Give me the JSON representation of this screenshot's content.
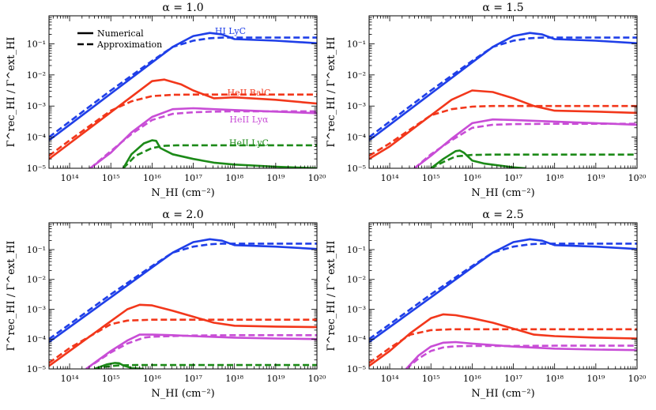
{
  "figure": {
    "xlabel": "N_HI (cm⁻²)",
    "ylabel": "Γ^rec_HI / Γ^ext_HI"
  },
  "legend": {
    "items": [
      {
        "label": "Numerical",
        "style": "solid"
      },
      {
        "label": "Approximation",
        "style": "dashed"
      }
    ]
  },
  "colors": {
    "HI LyC": "#1f3fe8",
    "HeII BalC": "#f2371b",
    "HeII Lyα": "#c84dd6",
    "HeII LyC": "#1c8a18"
  },
  "chart_data": [
    {
      "type": "line",
      "title": "α = 1.0",
      "xscale": "log",
      "yscale": "log",
      "xlim": [
        13.5,
        20.0
      ],
      "ylim": [
        -5.0,
        -0.1
      ],
      "xticks": [
        14,
        15,
        16,
        17,
        18,
        19,
        20
      ],
      "yticks": [
        -5,
        -4,
        -3,
        -2,
        -1
      ],
      "annotations": [
        {
          "text": "HI LyC",
          "series": "HI LyC",
          "at": [
            17.9,
            -0.68
          ]
        },
        {
          "text": "HeII BalC",
          "series": "HeII BalC",
          "at": [
            18.35,
            -2.66
          ]
        },
        {
          "text": "HeII Lyα",
          "series": "HeII Lyα",
          "at": [
            18.35,
            -3.53
          ]
        },
        {
          "text": "HeII LyC",
          "series": "HeII LyC",
          "at": [
            18.35,
            -4.28
          ]
        }
      ],
      "series": [
        {
          "name": "HI LyC",
          "style": "solid",
          "x": [
            13.5,
            14,
            15,
            16,
            16.5,
            17,
            17.4,
            17.7,
            18,
            19,
            20
          ],
          "y": [
            -4.1,
            -3.6,
            -2.6,
            -1.6,
            -1.1,
            -0.75,
            -0.65,
            -0.7,
            -0.85,
            -0.9,
            -0.98
          ]
        },
        {
          "name": "HI LyC",
          "style": "dashed",
          "x": [
            13.5,
            14,
            15,
            16,
            16.5,
            17,
            17.4,
            17.7,
            18,
            19,
            20
          ],
          "y": [
            -4.0,
            -3.5,
            -2.5,
            -1.55,
            -1.1,
            -0.9,
            -0.82,
            -0.8,
            -0.8,
            -0.8,
            -0.8
          ]
        },
        {
          "name": "HeII BalC",
          "style": "solid",
          "x": [
            13.5,
            14,
            15,
            15.5,
            16,
            16.3,
            16.7,
            17,
            17.5,
            18,
            19,
            20
          ],
          "y": [
            -4.7,
            -4.2,
            -3.2,
            -2.7,
            -2.2,
            -2.15,
            -2.3,
            -2.5,
            -2.75,
            -2.72,
            -2.8,
            -2.92
          ]
        },
        {
          "name": "HeII BalC",
          "style": "dashed",
          "x": [
            13.5,
            14,
            15,
            15.5,
            16,
            16.5,
            17,
            18,
            19,
            20
          ],
          "y": [
            -4.6,
            -4.1,
            -3.15,
            -2.85,
            -2.68,
            -2.64,
            -2.63,
            -2.63,
            -2.63,
            -2.63
          ]
        },
        {
          "name": "HeII Lyα",
          "style": "solid",
          "x": [
            14.5,
            15,
            15.5,
            16,
            16.5,
            17,
            17.5,
            18,
            19,
            20
          ],
          "y": [
            -5.0,
            -4.5,
            -3.85,
            -3.35,
            -3.1,
            -3.07,
            -3.1,
            -3.13,
            -3.18,
            -3.23
          ]
        },
        {
          "name": "HeII Lyα",
          "style": "dashed",
          "x": [
            14.5,
            15,
            15.5,
            16,
            16.5,
            17,
            17.5,
            18,
            19,
            20
          ],
          "y": [
            -5.0,
            -4.45,
            -3.9,
            -3.45,
            -3.25,
            -3.2,
            -3.18,
            -3.17,
            -3.17,
            -3.17
          ]
        },
        {
          "name": "HeII LyC",
          "style": "solid",
          "x": [
            15.3,
            15.5,
            15.8,
            16,
            16.1,
            16.2,
            16.5,
            17,
            17.5,
            18,
            19,
            20
          ],
          "y": [
            -5.0,
            -4.55,
            -4.2,
            -4.1,
            -4.12,
            -4.35,
            -4.55,
            -4.7,
            -4.82,
            -4.88,
            -4.95,
            -5.0
          ]
        },
        {
          "name": "HeII LyC",
          "style": "dashed",
          "x": [
            15.3,
            15.6,
            16,
            16.3,
            16.6,
            17,
            18,
            19,
            20
          ],
          "y": [
            -5.0,
            -4.6,
            -4.35,
            -4.28,
            -4.26,
            -4.26,
            -4.26,
            -4.26,
            -4.26
          ]
        }
      ]
    },
    {
      "type": "line",
      "title": "α = 1.5",
      "xscale": "log",
      "yscale": "log",
      "xlim": [
        13.5,
        20.0
      ],
      "ylim": [
        -5.0,
        -0.1
      ],
      "xticks": [
        14,
        15,
        16,
        17,
        18,
        19,
        20
      ],
      "yticks": [
        -5,
        -4,
        -3,
        -2,
        -1
      ],
      "annotations": [],
      "series": [
        {
          "name": "HI LyC",
          "style": "solid",
          "x": [
            13.5,
            14,
            15,
            16,
            16.5,
            17,
            17.4,
            17.7,
            18,
            19,
            20
          ],
          "y": [
            -4.1,
            -3.6,
            -2.6,
            -1.6,
            -1.1,
            -0.75,
            -0.65,
            -0.7,
            -0.85,
            -0.9,
            -0.98
          ]
        },
        {
          "name": "HI LyC",
          "style": "dashed",
          "x": [
            13.5,
            14,
            15,
            16,
            16.5,
            17,
            17.4,
            17.7,
            18,
            19,
            20
          ],
          "y": [
            -4.0,
            -3.5,
            -2.5,
            -1.55,
            -1.1,
            -0.9,
            -0.82,
            -0.8,
            -0.8,
            -0.8,
            -0.8
          ]
        },
        {
          "name": "HeII BalC",
          "style": "solid",
          "x": [
            13.5,
            14,
            15,
            15.5,
            16,
            16.5,
            17,
            17.5,
            18,
            19,
            20
          ],
          "y": [
            -4.7,
            -4.3,
            -3.3,
            -2.8,
            -2.5,
            -2.55,
            -2.75,
            -3.0,
            -3.15,
            -3.18,
            -3.22
          ]
        },
        {
          "name": "HeII BalC",
          "style": "dashed",
          "x": [
            13.5,
            14,
            15,
            15.5,
            16,
            16.5,
            17,
            18,
            19,
            20
          ],
          "y": [
            -4.6,
            -4.2,
            -3.3,
            -3.1,
            -3.02,
            -3.0,
            -3.0,
            -3.0,
            -3.0,
            -3.0
          ]
        },
        {
          "name": "HeII Lyα",
          "style": "solid",
          "x": [
            14.6,
            15,
            15.5,
            16,
            16.5,
            17,
            18,
            19,
            20
          ],
          "y": [
            -5.0,
            -4.6,
            -4.05,
            -3.55,
            -3.43,
            -3.45,
            -3.5,
            -3.55,
            -3.6
          ]
        },
        {
          "name": "HeII Lyα",
          "style": "dashed",
          "x": [
            14.6,
            15,
            15.5,
            16,
            16.5,
            17,
            18,
            19,
            20
          ],
          "y": [
            -5.0,
            -4.55,
            -4.1,
            -3.7,
            -3.6,
            -3.58,
            -3.57,
            -3.57,
            -3.57
          ]
        },
        {
          "name": "HeII LyC",
          "style": "solid",
          "x": [
            15.0,
            15.3,
            15.6,
            15.7,
            15.8,
            16,
            16.3,
            16.7,
            17,
            17.3
          ],
          "y": [
            -5.0,
            -4.7,
            -4.45,
            -4.43,
            -4.5,
            -4.75,
            -4.85,
            -4.92,
            -4.97,
            -5.0
          ]
        },
        {
          "name": "HeII LyC",
          "style": "dashed",
          "x": [
            15.0,
            15.3,
            15.6,
            16,
            16.5,
            17,
            18,
            19,
            20
          ],
          "y": [
            -5.0,
            -4.8,
            -4.62,
            -4.57,
            -4.56,
            -4.56,
            -4.56,
            -4.56,
            -4.56
          ]
        }
      ]
    },
    {
      "type": "line",
      "title": "α = 2.0",
      "xscale": "log",
      "yscale": "log",
      "xlim": [
        13.5,
        20.0
      ],
      "ylim": [
        -5.0,
        -0.1
      ],
      "xticks": [
        14,
        15,
        16,
        17,
        18,
        19,
        20
      ],
      "yticks": [
        -5,
        -4,
        -3,
        -2,
        -1
      ],
      "annotations": [],
      "series": [
        {
          "name": "HI LyC",
          "style": "solid",
          "x": [
            13.5,
            14,
            15,
            16,
            16.5,
            17,
            17.4,
            17.7,
            18,
            19,
            20
          ],
          "y": [
            -4.1,
            -3.6,
            -2.6,
            -1.6,
            -1.1,
            -0.75,
            -0.65,
            -0.7,
            -0.85,
            -0.9,
            -0.98
          ]
        },
        {
          "name": "HI LyC",
          "style": "dashed",
          "x": [
            13.5,
            14,
            15,
            16,
            16.5,
            17,
            17.4,
            17.7,
            18,
            19,
            20
          ],
          "y": [
            -4.0,
            -3.5,
            -2.5,
            -1.55,
            -1.1,
            -0.9,
            -0.82,
            -0.8,
            -0.8,
            -0.8,
            -0.8
          ]
        },
        {
          "name": "HeII BalC",
          "style": "solid",
          "x": [
            13.5,
            14,
            15,
            15.4,
            15.7,
            16,
            16.5,
            17,
            17.5,
            18,
            19,
            20
          ],
          "y": [
            -4.9,
            -4.4,
            -3.4,
            -3.0,
            -2.85,
            -2.87,
            -3.05,
            -3.25,
            -3.45,
            -3.55,
            -3.58,
            -3.6
          ]
        },
        {
          "name": "HeII BalC",
          "style": "dashed",
          "x": [
            13.5,
            14,
            15,
            15.4,
            16,
            16.5,
            17,
            18,
            19,
            20
          ],
          "y": [
            -4.8,
            -4.3,
            -3.5,
            -3.38,
            -3.35,
            -3.35,
            -3.35,
            -3.35,
            -3.35,
            -3.35
          ]
        },
        {
          "name": "HeII Lyα",
          "style": "solid",
          "x": [
            14.4,
            15,
            15.4,
            15.7,
            16,
            16.5,
            17,
            18,
            19,
            20
          ],
          "y": [
            -5.0,
            -4.4,
            -4.05,
            -3.85,
            -3.85,
            -3.87,
            -3.9,
            -3.95,
            -3.98,
            -4.0
          ]
        },
        {
          "name": "HeII Lyα",
          "style": "dashed",
          "x": [
            14.4,
            15,
            15.4,
            15.8,
            16,
            16.5,
            17,
            18,
            19,
            20
          ],
          "y": [
            -5.0,
            -4.45,
            -4.15,
            -3.95,
            -3.92,
            -3.9,
            -3.88,
            -3.87,
            -3.87,
            -3.87
          ]
        },
        {
          "name": "HeII LyC",
          "style": "solid",
          "x": [
            14.6,
            14.9,
            15.1,
            15.2,
            15.3,
            15.5,
            15.8
          ],
          "y": [
            -5.0,
            -4.85,
            -4.8,
            -4.81,
            -4.88,
            -4.97,
            -5.0
          ]
        },
        {
          "name": "HeII LyC",
          "style": "dashed",
          "x": [
            14.6,
            14.9,
            15.2,
            15.6,
            16,
            17,
            18,
            19,
            20
          ],
          "y": [
            -5.0,
            -4.92,
            -4.88,
            -4.87,
            -4.87,
            -4.87,
            -4.87,
            -4.87,
            -4.87
          ]
        }
      ]
    },
    {
      "type": "line",
      "title": "α = 2.5",
      "xscale": "log",
      "yscale": "log",
      "xlim": [
        13.5,
        20.0
      ],
      "ylim": [
        -5.0,
        -0.1
      ],
      "xticks": [
        14,
        15,
        16,
        17,
        18,
        19,
        20
      ],
      "yticks": [
        -5,
        -4,
        -3,
        -2,
        -1
      ],
      "annotations": [],
      "series": [
        {
          "name": "HI LyC",
          "style": "solid",
          "x": [
            13.5,
            14,
            15,
            16,
            16.5,
            17,
            17.4,
            17.7,
            18,
            19,
            20
          ],
          "y": [
            -4.1,
            -3.6,
            -2.6,
            -1.6,
            -1.1,
            -0.75,
            -0.65,
            -0.7,
            -0.85,
            -0.9,
            -0.98
          ]
        },
        {
          "name": "HI LyC",
          "style": "dashed",
          "x": [
            13.5,
            14,
            15,
            16,
            16.5,
            17,
            17.4,
            17.7,
            18,
            19,
            20
          ],
          "y": [
            -4.0,
            -3.5,
            -2.5,
            -1.55,
            -1.1,
            -0.9,
            -0.82,
            -0.8,
            -0.8,
            -0.8,
            -0.8
          ]
        },
        {
          "name": "HeII BalC",
          "style": "solid",
          "x": [
            13.5,
            14,
            14.5,
            15,
            15.3,
            15.6,
            16,
            16.5,
            17,
            17.5,
            18,
            19,
            20
          ],
          "y": [
            -4.9,
            -4.4,
            -3.8,
            -3.3,
            -3.17,
            -3.2,
            -3.3,
            -3.45,
            -3.65,
            -3.85,
            -3.9,
            -3.95,
            -3.98
          ]
        },
        {
          "name": "HeII BalC",
          "style": "dashed",
          "x": [
            13.5,
            14,
            14.5,
            15,
            15.5,
            16,
            17,
            18,
            19,
            20
          ],
          "y": [
            -4.8,
            -4.3,
            -3.85,
            -3.7,
            -3.67,
            -3.67,
            -3.67,
            -3.67,
            -3.67,
            -3.67
          ]
        },
        {
          "name": "HeII Lyα",
          "style": "solid",
          "x": [
            14.4,
            14.7,
            15,
            15.3,
            15.6,
            16,
            17,
            18,
            19,
            20
          ],
          "y": [
            -5.0,
            -4.55,
            -4.25,
            -4.12,
            -4.1,
            -4.15,
            -4.25,
            -4.32,
            -4.35,
            -4.37
          ]
        },
        {
          "name": "HeII Lyα",
          "style": "dashed",
          "x": [
            14.4,
            14.7,
            15,
            15.3,
            15.6,
            16,
            17,
            18,
            19,
            20
          ],
          "y": [
            -5.0,
            -4.65,
            -4.4,
            -4.28,
            -4.24,
            -4.23,
            -4.23,
            -4.22,
            -4.22,
            -4.22
          ]
        }
      ]
    }
  ]
}
